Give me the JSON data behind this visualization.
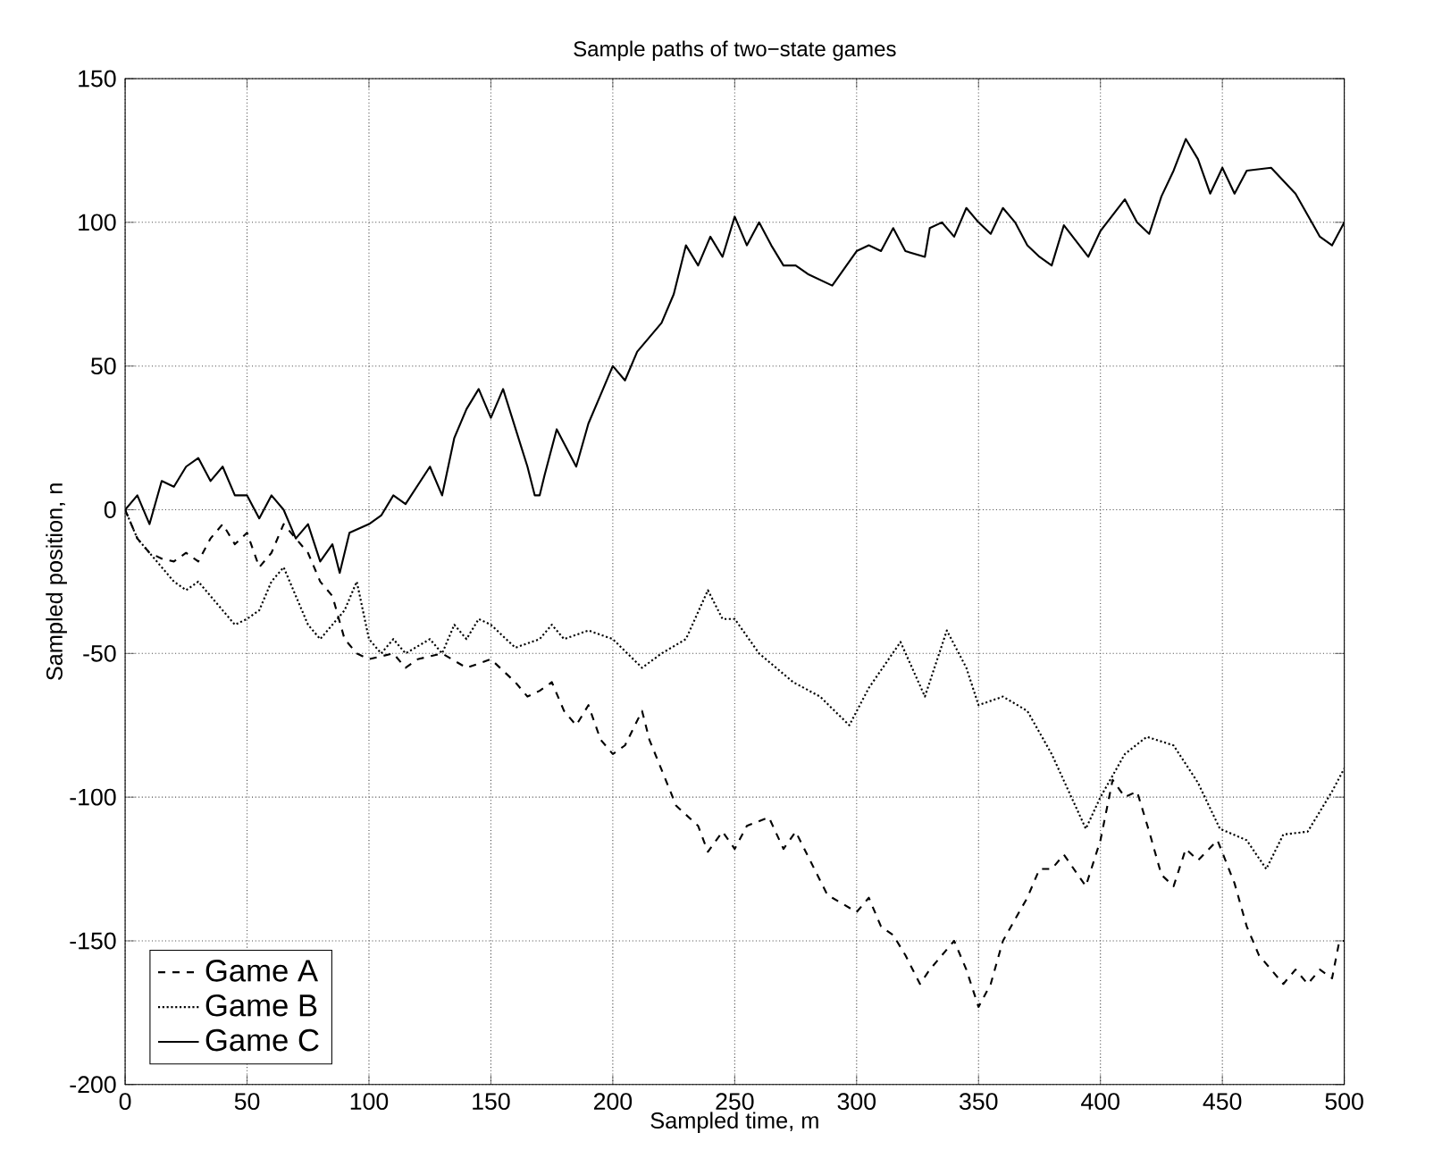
{
  "chart_data": {
    "type": "line",
    "title": "Sample paths of two−state games",
    "xlabel": "Sampled time, m",
    "ylabel": "Sampled position, n",
    "xlim": [
      0,
      500
    ],
    "ylim": [
      -200,
      150
    ],
    "xticks": [
      0,
      50,
      100,
      150,
      200,
      250,
      300,
      350,
      400,
      450,
      500
    ],
    "yticks": [
      -200,
      -150,
      -100,
      -50,
      0,
      50,
      100,
      150
    ],
    "grid": true,
    "legend": "bottom left",
    "marker": "none",
    "series": [
      {
        "name": "Game A",
        "color": "#000000",
        "line_style": "dashed",
        "x": [
          0,
          5,
          10,
          15,
          20,
          25,
          30,
          35,
          40,
          45,
          50,
          55,
          60,
          65,
          70,
          75,
          80,
          85,
          90,
          95,
          100,
          110,
          115,
          120,
          130,
          140,
          150,
          160,
          165,
          170,
          175,
          180,
          185,
          190,
          195,
          200,
          205,
          212,
          215,
          226,
          235,
          239,
          245,
          250,
          255,
          264,
          270,
          275,
          288,
          290,
          300,
          305,
          310,
          315,
          320,
          326,
          330,
          340,
          345,
          350,
          355,
          360,
          370,
          375,
          380,
          385,
          394,
          400,
          405,
          410,
          415,
          420,
          425,
          430,
          435,
          440,
          448,
          455,
          460,
          465,
          475,
          480,
          485,
          490,
          495,
          498,
          500
        ],
        "values": [
          0,
          -10,
          -15,
          -17,
          -18,
          -15,
          -18,
          -10,
          -5,
          -12,
          -8,
          -20,
          -15,
          -5,
          -10,
          -15,
          -25,
          -30,
          -45,
          -50,
          -52,
          -50,
          -55,
          -52,
          -50,
          -55,
          -52,
          -60,
          -65,
          -63,
          -60,
          -70,
          -75,
          -68,
          -80,
          -85,
          -82,
          -70,
          -80,
          -103,
          -110,
          -119,
          -112,
          -118,
          -110,
          -107,
          -118,
          -112,
          -134,
          -135,
          -140,
          -135,
          -145,
          -148,
          -155,
          -165,
          -160,
          -150,
          -160,
          -173,
          -165,
          -150,
          -135,
          -125,
          -125,
          -120,
          -131,
          -115,
          -94,
          -100,
          -98,
          -112,
          -127,
          -131,
          -118,
          -122,
          -115,
          -130,
          -145,
          -155,
          -165,
          -160,
          -165,
          -160,
          -163,
          -150,
          -150
        ]
      },
      {
        "name": "Game B",
        "color": "#000000",
        "line_style": "dotted",
        "x": [
          0,
          5,
          10,
          15,
          20,
          25,
          30,
          35,
          40,
          45,
          50,
          55,
          60,
          65,
          70,
          75,
          80,
          85,
          90,
          95,
          100,
          105,
          110,
          115,
          125,
          130,
          135,
          140,
          145,
          150,
          160,
          170,
          175,
          180,
          190,
          200,
          212,
          220,
          230,
          239,
          245,
          250,
          260,
          274,
          285,
          297,
          305,
          318,
          328,
          337,
          345,
          350,
          360,
          370,
          380,
          394,
          400,
          410,
          419,
          430,
          440,
          449,
          460,
          468,
          475,
          485,
          495,
          500
        ],
        "values": [
          0,
          -10,
          -15,
          -20,
          -25,
          -28,
          -25,
          -30,
          -35,
          -40,
          -38,
          -35,
          -25,
          -20,
          -30,
          -40,
          -45,
          -40,
          -35,
          -25,
          -45,
          -50,
          -45,
          -50,
          -45,
          -50,
          -40,
          -45,
          -38,
          -40,
          -48,
          -45,
          -40,
          -45,
          -42,
          -45,
          -55,
          -50,
          -45,
          -28,
          -38,
          -38,
          -50,
          -60,
          -65,
          -75,
          -62,
          -46,
          -65,
          -42,
          -55,
          -68,
          -65,
          -70,
          -85,
          -111,
          -100,
          -85,
          -79,
          -82,
          -95,
          -111,
          -115,
          -125,
          -113,
          -112,
          -98,
          -90
        ]
      },
      {
        "name": "Game C",
        "color": "#000000",
        "line_style": "solid",
        "x": [
          0,
          5,
          10,
          15,
          20,
          25,
          30,
          35,
          40,
          45,
          50,
          55,
          60,
          65,
          70,
          75,
          80,
          85,
          88,
          92,
          100,
          105,
          110,
          115,
          125,
          130,
          135,
          140,
          145,
          150,
          155,
          165,
          168,
          170,
          172,
          177,
          185,
          190,
          195,
          200,
          205,
          210,
          220,
          225,
          230,
          235,
          240,
          245,
          250,
          255,
          260,
          265,
          270,
          275,
          280,
          290,
          300,
          305,
          310,
          315,
          320,
          328,
          330,
          335,
          340,
          345,
          350,
          355,
          360,
          365,
          370,
          375,
          380,
          385,
          395,
          400,
          410,
          415,
          420,
          425,
          430,
          435,
          440,
          445,
          450,
          455,
          460,
          470,
          480,
          490,
          495,
          500
        ],
        "values": [
          0,
          5,
          -5,
          10,
          8,
          15,
          18,
          10,
          15,
          5,
          5,
          -3,
          5,
          0,
          -10,
          -5,
          -18,
          -12,
          -22,
          -8,
          -5,
          -2,
          5,
          2,
          15,
          5,
          25,
          35,
          42,
          32,
          42,
          15,
          5,
          5,
          12,
          28,
          15,
          30,
          40,
          50,
          45,
          55,
          65,
          75,
          92,
          85,
          95,
          88,
          102,
          92,
          100,
          92,
          85,
          85,
          82,
          78,
          90,
          92,
          90,
          98,
          90,
          88,
          98,
          100,
          95,
          105,
          100,
          96,
          105,
          100,
          92,
          88,
          85,
          99,
          88,
          97,
          108,
          100,
          96,
          109,
          118,
          129,
          122,
          110,
          119,
          110,
          118,
          119,
          110,
          95,
          92,
          100
        ]
      }
    ]
  }
}
